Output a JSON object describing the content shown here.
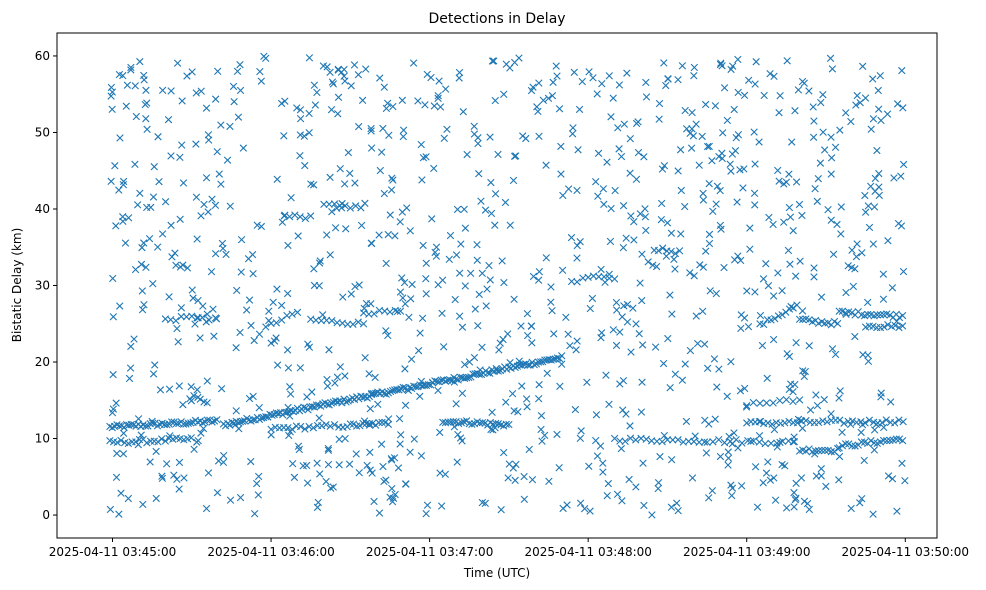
{
  "chart_data": {
    "type": "scatter",
    "title": "Detections in Delay",
    "xlabel": "Time (UTC)",
    "ylabel": "Bistatic Delay (km)",
    "x_type": "datetime",
    "xlim": [
      "2025-04-11T03:44:39",
      "2025-04-11T03:50:12"
    ],
    "ylim": [
      -3,
      63
    ],
    "x_ticks": [
      "2025-04-11 03:45:00",
      "2025-04-11 03:46:00",
      "2025-04-11 03:47:00",
      "2025-04-11 03:48:00",
      "2025-04-11 03:49:00",
      "2025-04-11 03:50:00"
    ],
    "y_ticks": [
      0,
      10,
      20,
      30,
      40,
      50,
      60
    ],
    "grid": false,
    "marker": "x",
    "color": "#1f77b4",
    "series": [
      {
        "name": "",
        "tracks": [
          {
            "from": "2025-04-11T03:44:59",
            "to": "2025-04-11T03:45:40",
            "y": [
              11.5,
              12.3
            ],
            "step_s": 0.9
          },
          {
            "from": "2025-04-11T03:45:42",
            "to": "2025-04-11T03:47:50",
            "y": [
              11.8,
              20.6
            ],
            "step_s": 0.8
          },
          {
            "from": "2025-04-11T03:44:59",
            "to": "2025-04-11T03:45:30",
            "y": [
              9.5,
              9.9
            ],
            "step_s": 1.4
          },
          {
            "from": "2025-04-11T03:46:00",
            "to": "2025-04-11T03:46:30",
            "y": [
              11.3,
              11.7
            ],
            "step_s": 1.6
          },
          {
            "from": "2025-04-11T03:46:30",
            "to": "2025-04-11T03:46:45",
            "y": [
              11.7,
              12.0
            ],
            "step_s": 1.2
          },
          {
            "from": "2025-04-11T03:47:05",
            "to": "2025-04-11T03:47:30",
            "y": [
              12.3,
              11.8
            ],
            "step_s": 1.0
          },
          {
            "from": "2025-04-11T03:45:20",
            "to": "2025-04-11T03:45:35",
            "y": [
              25.5,
              26.0
            ],
            "step_s": 2.0
          },
          {
            "from": "2025-04-11T03:45:58",
            "to": "2025-04-11T03:46:10",
            "y": [
              24.5,
              26.5
            ],
            "step_s": 2.0
          },
          {
            "from": "2025-04-11T03:46:15",
            "to": "2025-04-11T03:46:35",
            "y": [
              25.5,
              25.0
            ],
            "step_s": 2.0
          },
          {
            "from": "2025-04-11T03:46:35",
            "to": "2025-04-11T03:46:50",
            "y": [
              26.5,
              26.5
            ],
            "step_s": 2.0
          },
          {
            "from": "2025-04-11T03:46:20",
            "to": "2025-04-11T03:46:35",
            "y": [
              40.5,
              40.2
            ],
            "step_s": 2.0
          },
          {
            "from": "2025-04-11T03:46:05",
            "to": "2025-04-11T03:46:15",
            "y": [
              39.0,
              39.0
            ],
            "step_s": 2.0
          },
          {
            "from": "2025-04-11T03:48:25",
            "to": "2025-04-11T03:48:35",
            "y": [
              34.8,
              34.3
            ],
            "step_s": 1.6
          },
          {
            "from": "2025-04-11T03:47:58",
            "to": "2025-04-11T03:48:10",
            "y": [
              31.0,
              31.0
            ],
            "step_s": 2.0
          },
          {
            "from": "2025-04-11T03:48:10",
            "to": "2025-04-11T03:48:45",
            "y": [
              9.9,
              9.7
            ],
            "step_s": 2.0
          },
          {
            "from": "2025-04-11T03:48:45",
            "to": "2025-04-11T03:49:20",
            "y": [
              9.7,
              9.5
            ],
            "step_s": 2.2
          },
          {
            "from": "2025-04-11T03:49:20",
            "to": "2025-04-11T03:49:35",
            "y": [
              8.5,
              8.5
            ],
            "step_s": 1.2
          },
          {
            "from": "2025-04-11T03:49:35",
            "to": "2025-04-11T03:50:00",
            "y": [
              9.0,
              10.0
            ],
            "step_s": 1.2
          },
          {
            "from": "2025-04-11T03:49:00",
            "to": "2025-04-11T03:50:00",
            "y": [
              12.0,
              12.3
            ],
            "step_s": 1.6
          },
          {
            "from": "2025-04-11T03:49:05",
            "to": "2025-04-11T03:49:20",
            "y": [
              24.8,
              27.5
            ],
            "step_s": 1.4
          },
          {
            "from": "2025-04-11T03:49:20",
            "to": "2025-04-11T03:49:35",
            "y": [
              25.5,
              25.0
            ],
            "step_s": 1.2
          },
          {
            "from": "2025-04-11T03:49:35",
            "to": "2025-04-11T03:50:00",
            "y": [
              26.5,
              26.0
            ],
            "step_s": 1.2
          },
          {
            "from": "2025-04-11T03:49:45",
            "to": "2025-04-11T03:50:00",
            "y": [
              24.8,
              24.5
            ],
            "step_s": 1.4
          },
          {
            "from": "2025-04-11T03:49:00",
            "to": "2025-04-11T03:49:20",
            "y": [
              14.5,
              15.0
            ],
            "step_s": 2.5
          }
        ],
        "scattered_points": 1100,
        "scattered_y_range": [
          0,
          60
        ],
        "scattered_x_range": [
          "2025-04-11T03:44:59",
          "2025-04-11T03:50:00"
        ]
      }
    ]
  }
}
